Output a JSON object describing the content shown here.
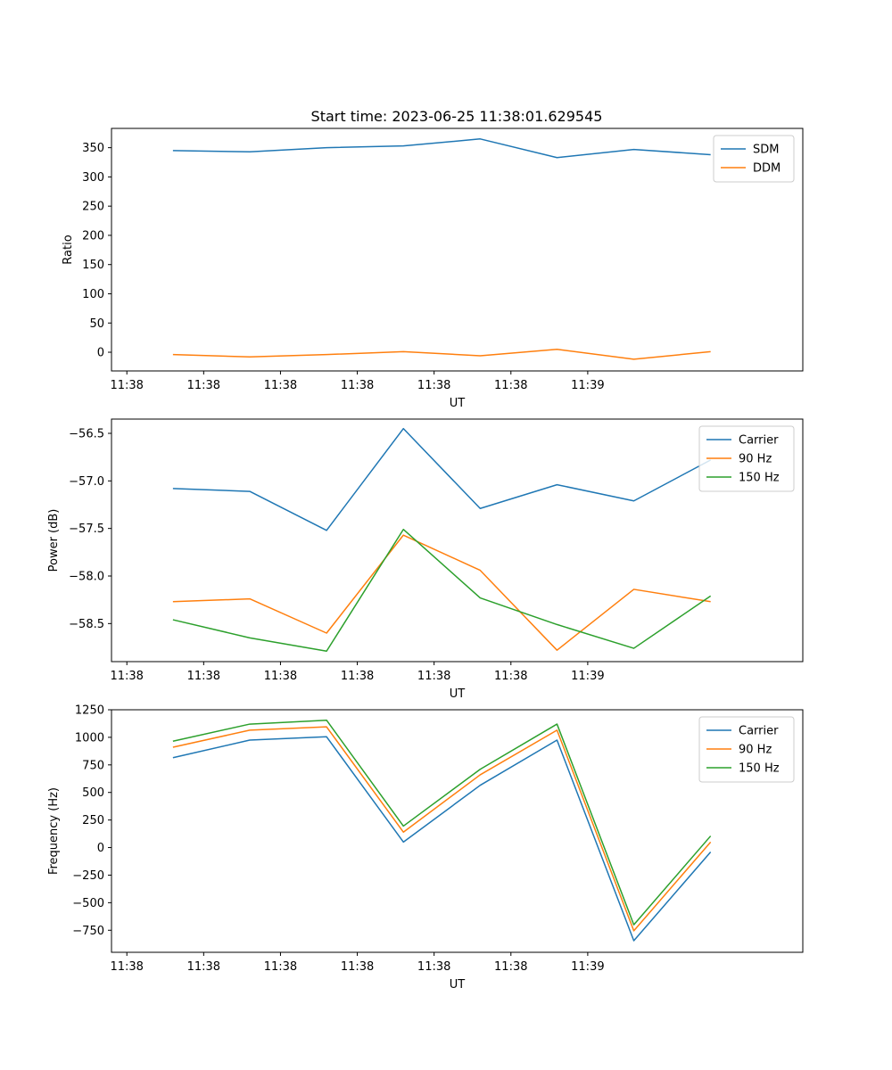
{
  "figure": {
    "title": "Start time: 2023-06-25 11:38:01.629545"
  },
  "chart_data": [
    {
      "type": "line",
      "title": "Start time: 2023-06-25 11:38:01.629545",
      "xlabel": "UT",
      "ylabel": "Ratio",
      "xticks": [
        "11:38",
        "11:38",
        "11:38",
        "11:38",
        "11:38",
        "11:38",
        "11:39"
      ],
      "x": [
        1,
        2,
        3,
        4,
        5,
        6,
        7,
        8
      ],
      "xlim": [
        0.2,
        9.2
      ],
      "ylim": [
        -32,
        383
      ],
      "yticks": [
        0,
        50,
        100,
        150,
        200,
        250,
        300,
        350
      ],
      "grid": false,
      "legend_position": "top-right",
      "series": [
        {
          "name": "SDM",
          "color": "#1f77b4",
          "values": [
            345,
            343,
            350,
            353,
            365,
            333,
            347,
            338
          ]
        },
        {
          "name": "DDM",
          "color": "#ff7f0e",
          "values": [
            -4,
            -8,
            -4,
            1,
            -6,
            5,
            -12,
            1
          ]
        }
      ]
    },
    {
      "type": "line",
      "xlabel": "UT",
      "ylabel": "Power (dB)",
      "xticks": [
        "11:38",
        "11:38",
        "11:38",
        "11:38",
        "11:38",
        "11:38",
        "11:39"
      ],
      "x": [
        1,
        2,
        3,
        4,
        5,
        6,
        7,
        8
      ],
      "xlim": [
        0.2,
        9.2
      ],
      "ylim": [
        -58.9,
        -56.35
      ],
      "yticks": [
        -56.5,
        -57.0,
        -57.5,
        -58.0,
        -58.5
      ],
      "ytick_labels": [
        "−56.5",
        "−57.0",
        "−57.5",
        "−58.0",
        "−58.5"
      ],
      "grid": false,
      "legend_position": "top-right",
      "series": [
        {
          "name": "Carrier",
          "color": "#1f77b4",
          "values": [
            -57.08,
            -57.11,
            -57.52,
            -56.45,
            -57.29,
            -57.04,
            -57.21,
            -56.78
          ]
        },
        {
          "name": "90 Hz",
          "color": "#ff7f0e",
          "values": [
            -58.27,
            -58.24,
            -58.6,
            -57.57,
            -57.94,
            -58.78,
            -58.14,
            -58.27
          ]
        },
        {
          "name": "150 Hz",
          "color": "#2ca02c",
          "values": [
            -58.46,
            -58.65,
            -58.79,
            -57.51,
            -58.23,
            -58.51,
            -58.76,
            -58.21
          ]
        }
      ]
    },
    {
      "type": "line",
      "xlabel": "UT",
      "ylabel": "Frequency (Hz)",
      "xticks": [
        "11:38",
        "11:38",
        "11:38",
        "11:38",
        "11:38",
        "11:38",
        "11:39"
      ],
      "x": [
        1,
        2,
        3,
        4,
        5,
        6,
        7,
        8
      ],
      "xlim": [
        0.2,
        9.2
      ],
      "ylim": [
        -950,
        1250
      ],
      "yticks": [
        1250,
        1000,
        750,
        500,
        250,
        0,
        -250,
        -500,
        -750
      ],
      "ytick_labels": [
        "1250",
        "1000",
        "750",
        "500",
        "250",
        "0",
        "−250",
        "−500",
        "−750"
      ],
      "grid": false,
      "legend_position": "top-right",
      "series": [
        {
          "name": "Carrier",
          "color": "#1f77b4",
          "values": [
            815,
            975,
            1005,
            50,
            565,
            975,
            -845,
            -40
          ]
        },
        {
          "name": "90 Hz",
          "color": "#ff7f0e",
          "values": [
            910,
            1065,
            1095,
            140,
            660,
            1065,
            -755,
            50
          ]
        },
        {
          "name": "150 Hz",
          "color": "#2ca02c",
          "values": [
            965,
            1120,
            1155,
            195,
            710,
            1120,
            -700,
            105
          ]
        }
      ]
    }
  ]
}
